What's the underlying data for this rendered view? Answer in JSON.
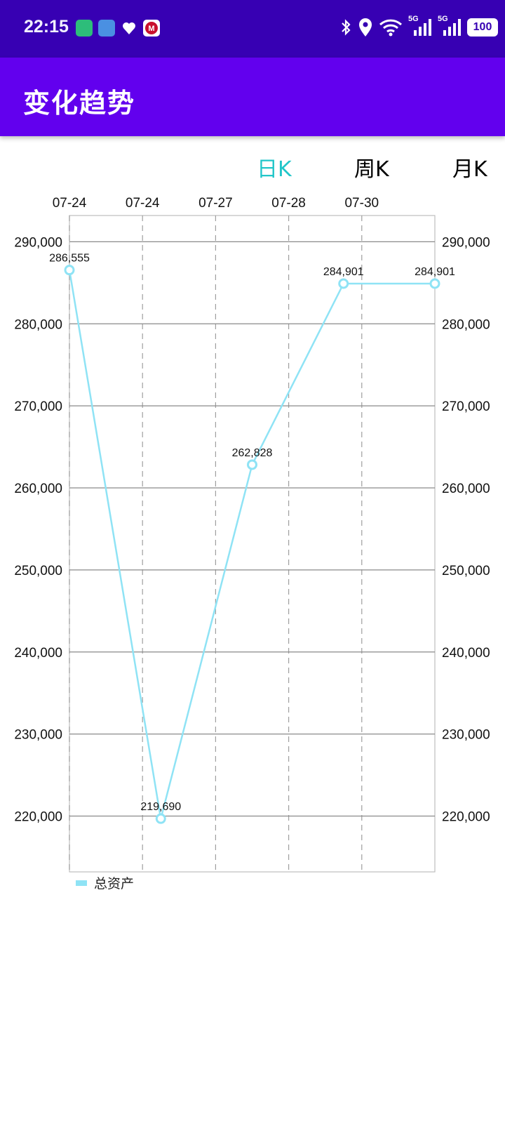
{
  "status_bar": {
    "time": "22:15",
    "signal_label_1": "5G",
    "signal_label_2": "5G",
    "battery": "100"
  },
  "app_bar": {
    "title": "变化趋势"
  },
  "tabs": [
    {
      "label": "日K",
      "active": true
    },
    {
      "label": "周K",
      "active": false
    },
    {
      "label": "月K",
      "active": false
    }
  ],
  "colors": {
    "status_bar": "#3700b3",
    "app_bar": "#6200ee",
    "active_tab": "#22c6c9",
    "series_line": "#8fe3f5"
  },
  "chart_data": {
    "type": "line",
    "x": [
      "07-24",
      "07-24",
      "07-27",
      "07-28",
      "07-30",
      ""
    ],
    "top_tick_labels": [
      "07-24",
      "07-24",
      "07-27",
      "07-28",
      "07-30"
    ],
    "series": [
      {
        "name": "总资产",
        "points": [
          {
            "x_index": 0,
            "y": 286555,
            "label": "286,555"
          },
          {
            "x_index": 1.25,
            "y": 219690,
            "label": "219,690"
          },
          {
            "x_index": 2.5,
            "y": 262828,
            "label": "262,828"
          },
          {
            "x_index": 3.75,
            "y": 284901,
            "label": "284,901"
          },
          {
            "x_index": 5,
            "y": 284901,
            "label": "284,901"
          }
        ]
      }
    ],
    "y_ticks": [
      {
        "value": 220000,
        "label": "220,000"
      },
      {
        "value": 230000,
        "label": "230,000"
      },
      {
        "value": 240000,
        "label": "240,000"
      },
      {
        "value": 250000,
        "label": "250,000"
      },
      {
        "value": 260000,
        "label": "260,000"
      },
      {
        "value": 270000,
        "label": "270,000"
      },
      {
        "value": 280000,
        "label": "280,000"
      },
      {
        "value": 290000,
        "label": "290,000"
      }
    ],
    "ylim": [
      213200,
      293200
    ],
    "dual_y_axis": true,
    "grid": true,
    "legend_position": "bottom-left"
  },
  "legend": {
    "label": "总资产"
  }
}
